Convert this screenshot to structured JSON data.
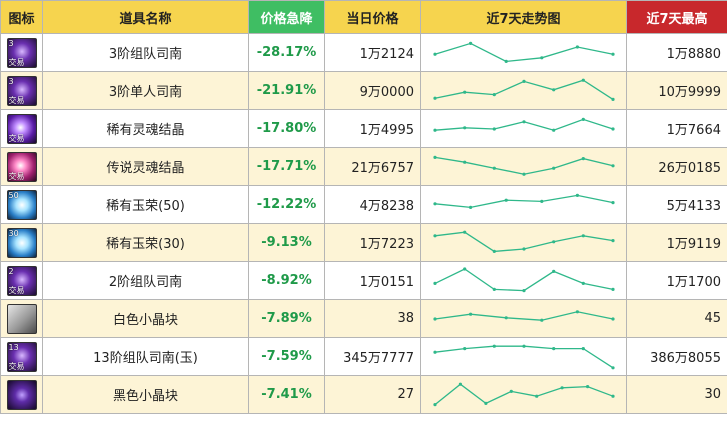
{
  "headers": {
    "icon": "图标",
    "name": "道具名称",
    "drop": "价格急降",
    "price": "当日价格",
    "trend": "近7天走势图",
    "max": "近7天最高"
  },
  "colors": {
    "header_yellow": "#f6d44e",
    "header_green": "#3fbe63",
    "header_red": "#c8282c",
    "drop_text": "#1f9a49",
    "sparkline": "#2fb88a",
    "row_alt": "#fdf4d6"
  },
  "rows": [
    {
      "icon": "purple-box-icon",
      "badge": "交易",
      "level": "3",
      "name": "3阶组队司南",
      "drop": "-28.17%",
      "price": "1万2124",
      "max": "1万8880",
      "trend": [
        0.55,
        0.1,
        0.85,
        0.7,
        0.25,
        0.55
      ]
    },
    {
      "icon": "purple-box-icon",
      "badge": "交易",
      "level": "3",
      "name": "3阶单人司南",
      "drop": "-21.91%",
      "price": "9万0000",
      "max": "10万9999",
      "trend": [
        0.8,
        0.55,
        0.65,
        0.1,
        0.45,
        0.05,
        0.85
      ]
    },
    {
      "icon": "purple-orb-icon",
      "badge": "交易",
      "level": "",
      "name": "稀有灵魂结晶",
      "drop": "-17.80%",
      "price": "1万4995",
      "max": "1万7664",
      "trend": [
        0.55,
        0.45,
        0.5,
        0.2,
        0.55,
        0.1,
        0.5
      ]
    },
    {
      "icon": "pink-orb-icon",
      "badge": "交易",
      "level": "",
      "name": "传说灵魂结晶",
      "drop": "-17.71%",
      "price": "21万6757",
      "max": "26万0185",
      "trend": [
        0.1,
        0.3,
        0.55,
        0.8,
        0.55,
        0.15,
        0.45
      ]
    },
    {
      "icon": "blue-gem-icon",
      "badge": "",
      "level": "50",
      "name": "稀有玉荣(50)",
      "drop": "-12.22%",
      "price": "4万8238",
      "max": "5万4133",
      "trend": [
        0.45,
        0.6,
        0.3,
        0.35,
        0.1,
        0.4
      ]
    },
    {
      "icon": "blue-gem-icon",
      "badge": "",
      "level": "30",
      "name": "稀有玉荣(30)",
      "drop": "-9.13%",
      "price": "1万7223",
      "max": "1万9119",
      "trend": [
        0.2,
        0.05,
        0.85,
        0.75,
        0.45,
        0.2,
        0.4
      ]
    },
    {
      "icon": "purple-box-icon",
      "badge": "交易",
      "level": "2",
      "name": "2阶组队司南",
      "drop": "-8.92%",
      "price": "1万0151",
      "max": "1万1700",
      "trend": [
        0.6,
        0.0,
        0.85,
        0.9,
        0.1,
        0.6,
        0.85
      ]
    },
    {
      "icon": "white-cube-icon",
      "badge": "",
      "level": "",
      "name": "白色小晶块",
      "drop": "-7.89%",
      "price": "38",
      "max": "45",
      "trend": [
        0.5,
        0.3,
        0.45,
        0.55,
        0.2,
        0.5
      ]
    },
    {
      "icon": "purple-box-icon",
      "badge": "交易",
      "level": "13",
      "name": "13阶组队司南(玉)",
      "drop": "-7.59%",
      "price": "345万7777",
      "max": "386万8055",
      "trend": [
        0.3,
        0.15,
        0.05,
        0.05,
        0.15,
        0.15,
        0.95
      ]
    },
    {
      "icon": "black-cube-icon",
      "badge": "",
      "level": "",
      "name": "黑色小晶块",
      "drop": "-7.41%",
      "price": "27",
      "max": "30",
      "trend": [
        0.9,
        0.05,
        0.85,
        0.35,
        0.55,
        0.2,
        0.15,
        0.55
      ]
    }
  ]
}
